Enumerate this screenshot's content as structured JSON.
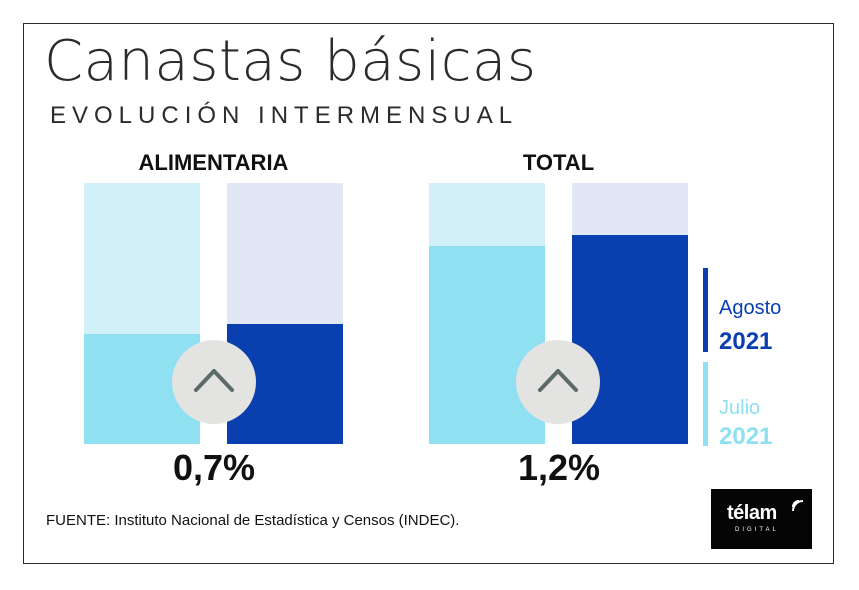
{
  "title": "Canastas básicas",
  "subtitle": "EVOLUCIÓN INTERMENSUAL",
  "chart_data": {
    "type": "bar",
    "title": "Canastas básicas",
    "subtitle": "EVOLUCIÓN INTERMENSUAL",
    "categories": [
      "ALIMENTARIA",
      "TOTAL"
    ],
    "series": [
      {
        "name": "Julio 2021",
        "fraction": [
          0.42,
          0.76
        ],
        "color": "#8fe0f0",
        "bg_color": "#d2f0f8"
      },
      {
        "name": "Agosto 2021",
        "fraction": [
          0.46,
          0.8
        ],
        "color": "#0a3fb0",
        "bg_color": "#e2e7f5"
      }
    ],
    "changes": [
      "0,7%",
      "1,2%"
    ],
    "legend_position": "right"
  },
  "legend": [
    {
      "month": "Agosto",
      "year": "2021",
      "color": "#0a3fb0"
    },
    {
      "month": "Julio",
      "year": "2021",
      "color": "#8fe0f0"
    }
  ],
  "icons": {
    "arrow": "chevron-up-icon"
  },
  "source": "FUENTE: Instituto Nacional de Estadística y Censos (INDEC).",
  "logo": {
    "name": "télam",
    "sub": "DIGITAL"
  }
}
